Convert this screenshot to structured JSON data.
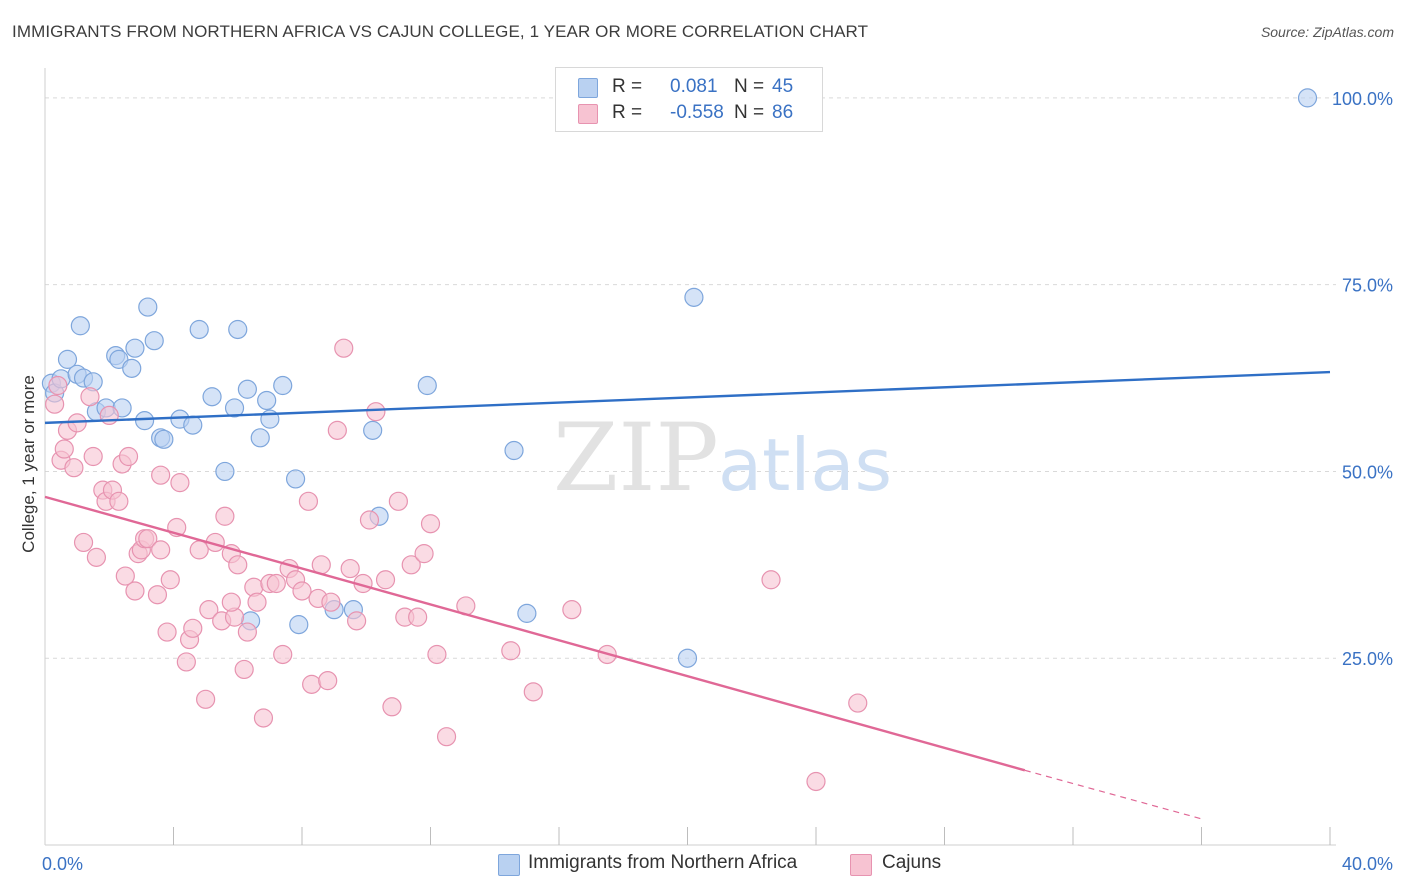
{
  "title": "IMMIGRANTS FROM NORTHERN AFRICA VS CAJUN COLLEGE, 1 YEAR OR MORE CORRELATION CHART",
  "source": "Source: ZipAtlas.com",
  "watermark": {
    "zip": "ZIP",
    "atlas": "atlas"
  },
  "legend": {
    "rows": [
      {
        "r_label": "R =",
        "r_value": "0.081",
        "n_label": "N =",
        "n_value": "45"
      },
      {
        "r_label": "R =",
        "r_value": "-0.558",
        "n_label": "N =",
        "n_value": "86"
      }
    ]
  },
  "bottom_legend": [
    {
      "label": "Immigrants from Northern Africa"
    },
    {
      "label": "Cajuns"
    }
  ],
  "colors": {
    "blue_fill": "#b9d1f1",
    "blue_stroke": "#7ea6dc",
    "blue_line": "#2f6fc6",
    "pink_fill": "#f7c3d2",
    "pink_stroke": "#e793b0",
    "pink_line": "#e06896",
    "tick_label": "#3a72c4",
    "grid": "#d9d9d9"
  },
  "chart_data": {
    "type": "scatter",
    "title": "IMMIGRANTS FROM NORTHERN AFRICA VS CAJUN COLLEGE, 1 YEAR OR MORE CORRELATION CHART",
    "xlabel": "",
    "ylabel": "College, 1 year or more",
    "xlim": [
      0,
      40
    ],
    "ylim": [
      0,
      104
    ],
    "x_tick_labels": [
      {
        "value": 0,
        "label": "0.0%"
      },
      {
        "value": 40,
        "label": "40.0%"
      }
    ],
    "x_minor_ticks": [
      4,
      8,
      12,
      16,
      20,
      24,
      28,
      32,
      36
    ],
    "y_ticks": [
      {
        "value": 100,
        "label": "100.0%"
      },
      {
        "value": 75,
        "label": "75.0%"
      },
      {
        "value": 50,
        "label": "50.0%"
      },
      {
        "value": 25,
        "label": "25.0%"
      }
    ],
    "grid": true,
    "legend_placement": "top-center",
    "series": [
      {
        "name": "Immigrants from Northern Africa",
        "color": "#b9d1f1",
        "trend": {
          "x": [
            0,
            40
          ],
          "y": [
            56.5,
            63.3
          ],
          "style": "solid"
        },
        "points": [
          [
            0.2,
            61.8
          ],
          [
            0.3,
            60.5
          ],
          [
            0.5,
            62.4
          ],
          [
            0.7,
            65.0
          ],
          [
            1.0,
            63.0
          ],
          [
            1.2,
            62.5
          ],
          [
            1.5,
            62.0
          ],
          [
            1.6,
            58.0
          ],
          [
            1.9,
            58.5
          ],
          [
            2.2,
            65.5
          ],
          [
            2.3,
            65.0
          ],
          [
            2.4,
            58.5
          ],
          [
            2.7,
            63.8
          ],
          [
            2.8,
            66.5
          ],
          [
            3.1,
            56.8
          ],
          [
            3.2,
            72.0
          ],
          [
            3.4,
            67.5
          ],
          [
            3.6,
            54.5
          ],
          [
            3.7,
            54.3
          ],
          [
            4.2,
            57.0
          ],
          [
            4.6,
            56.2
          ],
          [
            4.8,
            69.0
          ],
          [
            5.2,
            60.0
          ],
          [
            5.6,
            50.0
          ],
          [
            5.9,
            58.5
          ],
          [
            6.0,
            69.0
          ],
          [
            6.3,
            61.0
          ],
          [
            6.7,
            54.5
          ],
          [
            6.9,
            59.5
          ],
          [
            7.0,
            57.0
          ],
          [
            7.4,
            61.5
          ],
          [
            7.8,
            49.0
          ],
          [
            6.4,
            30.0
          ],
          [
            7.9,
            29.5
          ],
          [
            9.0,
            31.5
          ],
          [
            9.6,
            31.5
          ],
          [
            10.2,
            55.5
          ],
          [
            10.4,
            44.0
          ],
          [
            11.9,
            61.5
          ],
          [
            14.6,
            52.8
          ],
          [
            15.0,
            31.0
          ],
          [
            20.0,
            25.0
          ],
          [
            20.2,
            73.3
          ],
          [
            39.3,
            100.0
          ],
          [
            1.1,
            69.5
          ]
        ]
      },
      {
        "name": "Cajuns",
        "color": "#f7c3d2",
        "trend": {
          "x": [
            0,
            30.5
          ],
          "y": [
            46.6,
            10.0
          ],
          "style": "solid",
          "dashed_extension_to": [
            36.0,
            3.5
          ]
        },
        "points": [
          [
            0.3,
            59.0
          ],
          [
            0.4,
            61.5
          ],
          [
            0.5,
            51.5
          ],
          [
            0.6,
            53.0
          ],
          [
            0.7,
            55.5
          ],
          [
            0.9,
            50.5
          ],
          [
            1.0,
            56.5
          ],
          [
            1.2,
            40.5
          ],
          [
            1.4,
            60.0
          ],
          [
            1.5,
            52.0
          ],
          [
            1.6,
            38.5
          ],
          [
            1.8,
            47.5
          ],
          [
            1.9,
            46.0
          ],
          [
            2.0,
            57.5
          ],
          [
            2.1,
            47.5
          ],
          [
            2.3,
            46.0
          ],
          [
            2.4,
            51.0
          ],
          [
            2.5,
            36.0
          ],
          [
            2.6,
            52.0
          ],
          [
            2.8,
            34.0
          ],
          [
            2.9,
            39.0
          ],
          [
            3.0,
            39.5
          ],
          [
            3.1,
            41.0
          ],
          [
            3.2,
            41.0
          ],
          [
            3.5,
            33.5
          ],
          [
            3.6,
            49.5
          ],
          [
            3.8,
            28.5
          ],
          [
            3.9,
            35.5
          ],
          [
            4.1,
            42.5
          ],
          [
            4.2,
            48.5
          ],
          [
            4.4,
            24.5
          ],
          [
            4.5,
            27.5
          ],
          [
            4.6,
            29.0
          ],
          [
            4.8,
            39.5
          ],
          [
            5.0,
            19.5
          ],
          [
            5.1,
            31.5
          ],
          [
            5.3,
            40.5
          ],
          [
            5.5,
            30.0
          ],
          [
            5.6,
            44.0
          ],
          [
            5.8,
            39.0
          ],
          [
            5.9,
            30.5
          ],
          [
            6.0,
            37.5
          ],
          [
            6.2,
            23.5
          ],
          [
            6.3,
            28.5
          ],
          [
            6.5,
            34.5
          ],
          [
            6.6,
            32.5
          ],
          [
            6.8,
            17.0
          ],
          [
            7.0,
            35.0
          ],
          [
            7.2,
            35.0
          ],
          [
            7.4,
            25.5
          ],
          [
            7.6,
            37.0
          ],
          [
            7.8,
            35.5
          ],
          [
            8.0,
            34.0
          ],
          [
            8.2,
            46.0
          ],
          [
            8.3,
            21.5
          ],
          [
            8.5,
            33.0
          ],
          [
            8.6,
            37.5
          ],
          [
            8.8,
            22.0
          ],
          [
            8.9,
            32.5
          ],
          [
            9.1,
            55.5
          ],
          [
            9.3,
            66.5
          ],
          [
            9.5,
            37.0
          ],
          [
            9.7,
            30.0
          ],
          [
            9.9,
            35.0
          ],
          [
            10.1,
            43.5
          ],
          [
            10.3,
            58.0
          ],
          [
            10.6,
            35.5
          ],
          [
            10.8,
            18.5
          ],
          [
            11.0,
            46.0
          ],
          [
            11.2,
            30.5
          ],
          [
            11.4,
            37.5
          ],
          [
            11.6,
            30.5
          ],
          [
            11.8,
            39.0
          ],
          [
            12.0,
            43.0
          ],
          [
            12.2,
            25.5
          ],
          [
            12.5,
            14.5
          ],
          [
            13.1,
            32.0
          ],
          [
            14.5,
            26.0
          ],
          [
            15.2,
            20.5
          ],
          [
            16.4,
            31.5
          ],
          [
            17.5,
            25.5
          ],
          [
            22.6,
            35.5
          ],
          [
            25.3,
            19.0
          ],
          [
            24.0,
            8.5
          ],
          [
            3.6,
            39.5
          ],
          [
            5.8,
            32.5
          ]
        ]
      }
    ]
  }
}
